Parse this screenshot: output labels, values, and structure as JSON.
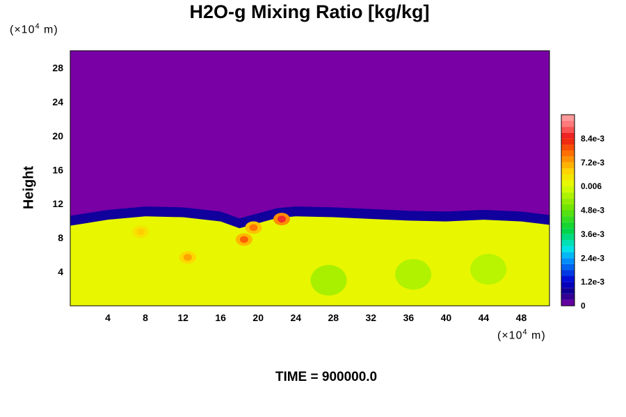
{
  "chart_data": {
    "type": "heatmap",
    "title": "H2O-g Mixing Ratio [kg/kg]",
    "ylabel": "Height",
    "x_unit": "(×10",
    "x_unit_exp": "4",
    "x_unit_suffix": " m)",
    "y_unit": "(×10",
    "y_unit_exp": "4",
    "y_unit_suffix": " m)",
    "x_ticks": [
      4,
      8,
      12,
      16,
      20,
      24,
      28,
      32,
      36,
      40,
      44,
      48
    ],
    "y_ticks": [
      4,
      8,
      12,
      16,
      20,
      24,
      28
    ],
    "xlim": [
      0,
      51
    ],
    "ylim": [
      0,
      30
    ],
    "colorbar": {
      "range": [
        0,
        0.0096
      ],
      "tick_values": [
        0,
        0.0012,
        0.0024,
        0.0036,
        0.0048,
        0.006,
        0.0072,
        0.0084
      ],
      "tick_labels": [
        "0",
        "1.2e-3",
        "2.4e-3",
        "3.6e-3",
        "4.8e-3",
        "0.006",
        "7.2e-3",
        "8.4e-3"
      ]
    },
    "field": {
      "lower_layer_value": 0.0062,
      "upper_layer_value": 0.0,
      "interface_height": [
        [
          0,
          10.5
        ],
        [
          4,
          11.2
        ],
        [
          8,
          11.6
        ],
        [
          12,
          11.5
        ],
        [
          16,
          11.0
        ],
        [
          18,
          10.2
        ],
        [
          20,
          10.8
        ],
        [
          22,
          11.4
        ],
        [
          24,
          11.6
        ],
        [
          28,
          11.5
        ],
        [
          32,
          11.3
        ],
        [
          36,
          11.1
        ],
        [
          40,
          11.0
        ],
        [
          44,
          11.2
        ],
        [
          48,
          11.0
        ],
        [
          51,
          10.6
        ]
      ],
      "moist_patches": [
        {
          "x": 18.5,
          "y": 7.8,
          "value": 0.0078
        },
        {
          "x": 19.5,
          "y": 9.2,
          "value": 0.0076
        },
        {
          "x": 22.5,
          "y": 10.2,
          "value": 0.0086
        },
        {
          "x": 12.5,
          "y": 5.7,
          "value": 0.0072
        },
        {
          "x": 7.5,
          "y": 8.7,
          "value": 0.0068
        }
      ],
      "dry_patches": [
        {
          "x": 36.5,
          "y": 3.7,
          "value": 0.0055
        },
        {
          "x": 44.5,
          "y": 4.3,
          "value": 0.0056
        },
        {
          "x": 27.5,
          "y": 3.0,
          "value": 0.0054
        }
      ]
    },
    "time_label": "TIME = 900000.0"
  }
}
